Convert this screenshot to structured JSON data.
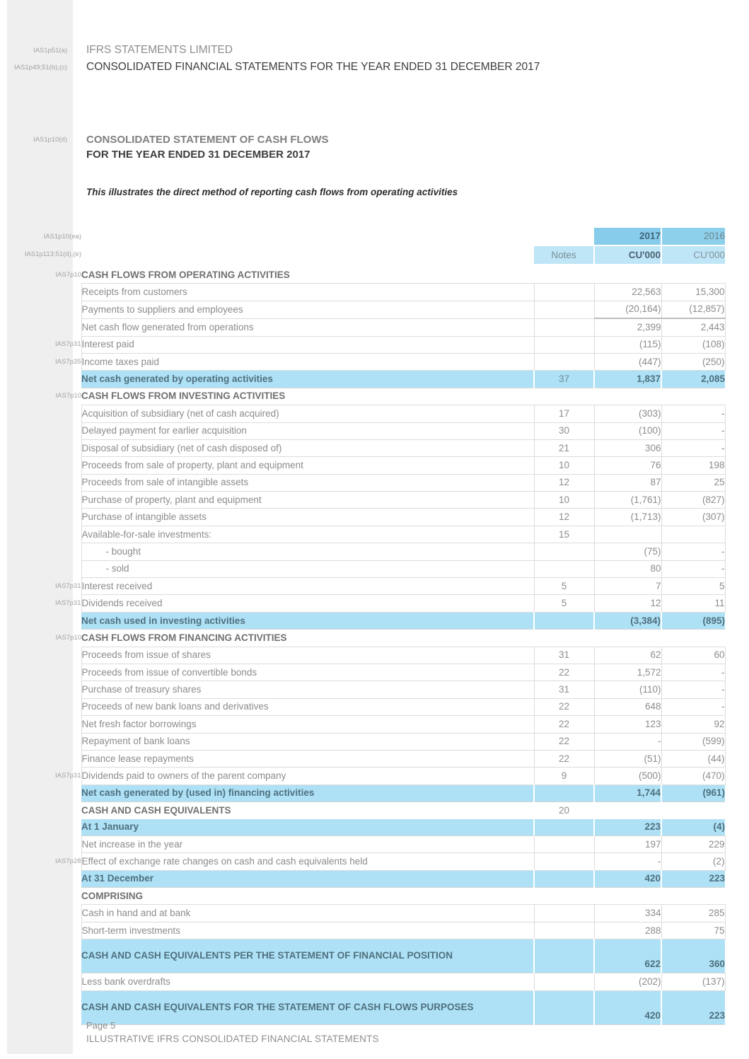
{
  "header": {
    "ref_company": "IAS1p51(a)",
    "ref_subtitle": "IAS1p49;51(b),(c)",
    "ref_statement": "IAS1p10(d)",
    "company": "IFRS STATEMENTS LIMITED",
    "subtitle": "CONSOLIDATED FINANCIAL STATEMENTS FOR THE YEAR ENDED 31 DECEMBER 2017",
    "statement_title": "CONSOLIDATED STATEMENT OF CASH FLOWS",
    "statement_period": "FOR THE YEAR ENDED 31 DECEMBER 2017",
    "note": "This illustrates the direct method of reporting cash flows from operating activities"
  },
  "table": {
    "refs": {
      "year_row": "IAS1p10(ea)",
      "notes_row": "IAS1p113;51(d),(e)"
    },
    "headers": {
      "notes": "Notes",
      "y2017": "2017",
      "y2016": "2016",
      "unit_2017": "CU'000",
      "unit_2016": "CU'000"
    },
    "colors": {
      "header_blue": "#87cdeb",
      "header_light_blue": "#bee6f7",
      "highlight_blue": "#aee1f5",
      "strip_gray": "#efefef"
    },
    "rows": [
      {
        "type": "section",
        "ref": "IAS7p10",
        "label": "CASH FLOWS FROM OPERATING ACTIVITIES",
        "note": "",
        "v2017": "",
        "v2016": ""
      },
      {
        "type": "item",
        "ref": "",
        "label": "Receipts from customers",
        "note": "",
        "v2017": "22,563",
        "v2016": "15,300"
      },
      {
        "type": "item",
        "ref": "",
        "label": "Payments to suppliers and employees",
        "note": "",
        "v2017": "(20,164)",
        "v2016": "(12,857)"
      },
      {
        "type": "item",
        "rule": true,
        "ref": "",
        "label": "Net cash flow generated from operations",
        "note": "",
        "v2017": "2,399",
        "v2016": "2,443"
      },
      {
        "type": "item",
        "ref": "IAS7p31",
        "label": "Interest paid",
        "note": "",
        "v2017": "(115)",
        "v2016": "(108)"
      },
      {
        "type": "item",
        "ref": "IAS7p35",
        "label": "Income taxes paid",
        "note": "",
        "v2017": "(447)",
        "v2016": "(250)"
      },
      {
        "type": "total",
        "ref": "",
        "label": "Net cash generated by operating activities",
        "note": "37",
        "v2017": "1,837",
        "v2016": "2,085"
      },
      {
        "type": "section",
        "ref": "IAS7p10",
        "label": "CASH FLOWS FROM INVESTING ACTIVITIES",
        "note": "",
        "v2017": "",
        "v2016": ""
      },
      {
        "type": "item",
        "ref": "",
        "label": "Acquisition of subsidiary (net of cash acquired)",
        "note": "17",
        "v2017": "(303)",
        "v2016": "-"
      },
      {
        "type": "item",
        "ref": "",
        "label": "Delayed payment for earlier acquisition",
        "note": "30",
        "v2017": "(100)",
        "v2016": "-"
      },
      {
        "type": "item",
        "ref": "",
        "label": "Disposal of subsidiary (net of cash disposed of)",
        "note": "21",
        "v2017": "306",
        "v2016": "-"
      },
      {
        "type": "item",
        "ref": "",
        "label": "Proceeds from sale of property, plant and equipment",
        "note": "10",
        "v2017": "76",
        "v2016": "198"
      },
      {
        "type": "item",
        "ref": "",
        "label": "Proceeds from sale of intangible assets",
        "note": "12",
        "v2017": "87",
        "v2016": "25"
      },
      {
        "type": "item",
        "ref": "",
        "label": "Purchase of property, plant and equipment",
        "note": "10",
        "v2017": "(1,761)",
        "v2016": "(827)"
      },
      {
        "type": "item",
        "ref": "",
        "label": "Purchase of intangible assets",
        "note": "12",
        "v2017": "(1,713)",
        "v2016": "(307)"
      },
      {
        "type": "item",
        "ref": "",
        "label": "Available-for-sale investments:",
        "note": "15",
        "v2017": "",
        "v2016": ""
      },
      {
        "type": "indent",
        "ref": "",
        "label": "- bought",
        "note": "",
        "v2017": "(75)",
        "v2016": "-"
      },
      {
        "type": "indent",
        "ref": "",
        "label": "- sold",
        "note": "",
        "v2017": "80",
        "v2016": "-"
      },
      {
        "type": "item",
        "ref": "IAS7p31",
        "label": "Interest received",
        "note": "5",
        "v2017": "7",
        "v2016": "5"
      },
      {
        "type": "item",
        "ref": "IAS7p31",
        "label": "Dividends received",
        "note": "5",
        "v2017": "12",
        "v2016": "11"
      },
      {
        "type": "total",
        "ref": "",
        "label": "Net cash used in investing activities",
        "note": "",
        "v2017": "(3,384)",
        "v2016": "(895)"
      },
      {
        "type": "section",
        "ref": "IAS7p10",
        "label": "CASH FLOWS FROM FINANCING ACTIVITIES",
        "note": "",
        "v2017": "",
        "v2016": ""
      },
      {
        "type": "item",
        "ref": "",
        "label": "Proceeds from issue of shares",
        "note": "31",
        "v2017": "62",
        "v2016": "60"
      },
      {
        "type": "item",
        "ref": "",
        "label": "Proceeds from issue of convertible bonds",
        "note": "22",
        "v2017": "1,572",
        "v2016": "-"
      },
      {
        "type": "item",
        "ref": "",
        "label": "Purchase of treasury shares",
        "note": "31",
        "v2017": "(110)",
        "v2016": "-"
      },
      {
        "type": "item",
        "ref": "",
        "label": "Proceeds of new bank loans and derivatives",
        "note": "22",
        "v2017": "648",
        "v2016": "-"
      },
      {
        "type": "item",
        "ref": "",
        "label": "Net fresh factor borrowings",
        "note": "22",
        "v2017": "123",
        "v2016": "92"
      },
      {
        "type": "item",
        "ref": "",
        "label": "Repayment of bank loans",
        "note": "22",
        "v2017": "-",
        "v2016": "(599)"
      },
      {
        "type": "item",
        "ref": "",
        "label": "Finance lease repayments",
        "note": "22",
        "v2017": "(51)",
        "v2016": "(44)"
      },
      {
        "type": "item",
        "ref": "IAS7p31",
        "label": "Dividends paid to owners of the parent company",
        "note": "9",
        "v2017": "(500)",
        "v2016": "(470)"
      },
      {
        "type": "total",
        "ref": "",
        "label": "Net cash generated by (used in) financing activities",
        "note": "",
        "v2017": "1,744",
        "v2016": "(961)"
      },
      {
        "type": "section",
        "ref": "",
        "label": "CASH AND CASH EQUIVALENTS",
        "note": "20",
        "v2017": "",
        "v2016": ""
      },
      {
        "type": "total",
        "ref": "",
        "label": "At 1 January",
        "note": "",
        "v2017": "223",
        "v2016": "(4)"
      },
      {
        "type": "item",
        "ref": "",
        "label": "Net increase in the year",
        "note": "",
        "v2017": "197",
        "v2016": "229"
      },
      {
        "type": "item",
        "ref": "IAS7p28",
        "label": "Effect of exchange rate changes on cash and cash equivalents held",
        "note": "",
        "v2017": "-",
        "v2016": "(2)"
      },
      {
        "type": "total",
        "ref": "",
        "label": "At 31 December",
        "note": "",
        "v2017": "420",
        "v2016": "223"
      },
      {
        "type": "section",
        "ref": "",
        "label": "COMPRISING",
        "note": "",
        "v2017": "",
        "v2016": ""
      },
      {
        "type": "item",
        "ref": "",
        "label": "Cash in hand and at bank",
        "note": "",
        "v2017": "334",
        "v2016": "285"
      },
      {
        "type": "item",
        "ref": "",
        "label": "Short-term investments",
        "note": "",
        "v2017": "288",
        "v2016": "75"
      },
      {
        "type": "total2",
        "ref": "",
        "label": "CASH AND CASH EQUIVALENTS PER THE STATEMENT OF FINANCIAL POSITION",
        "note": "",
        "v2017": "622",
        "v2016": "360"
      },
      {
        "type": "item",
        "ref": "",
        "label": "Less bank overdrafts",
        "note": "",
        "v2017": "(202)",
        "v2016": "(137)"
      },
      {
        "type": "total2",
        "ref": "",
        "label": "CASH AND CASH EQUIVALENTS FOR THE STATEMENT OF CASH FLOWS PURPOSES",
        "note": "",
        "v2017": "420",
        "v2016": "223"
      }
    ]
  },
  "footer": {
    "page": "Page 5",
    "line": "ILLUSTRATIVE IFRS CONSOLIDATED FINANCIAL STATEMENTS"
  }
}
